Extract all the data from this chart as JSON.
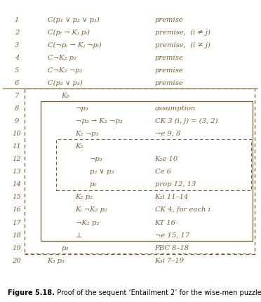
{
  "rows": [
    {
      "num": "1",
      "formula": "C(p₁ ∨ p₂ ∨ p₃)",
      "just": "premise",
      "indent": 0
    },
    {
      "num": "2",
      "formula": "C(pᵢ → Kⱼ pᵢ)",
      "just": "premise,  (i ≠ j)",
      "indent": 0
    },
    {
      "num": "3",
      "formula": "C(¬pᵢ → Kⱼ ¬pᵢ)",
      "just": "premise,  (i ≠ j)",
      "indent": 0
    },
    {
      "num": "4",
      "formula": "C¬K₂ p₂",
      "just": "premise",
      "indent": 0
    },
    {
      "num": "5",
      "formula": "C¬K₂ ¬p₂",
      "just": "premise",
      "indent": 0
    },
    {
      "num": "6",
      "formula": "C(p₂ ∨ p₃)",
      "just": "premise",
      "indent": 0
    },
    {
      "num": "7",
      "formula": "K₃",
      "just": "",
      "indent": 1
    },
    {
      "num": "8",
      "formula": "¬p₃",
      "just": "assumption",
      "indent": 2
    },
    {
      "num": "9",
      "formula": "¬p₃ → K₂ ¬p₃",
      "just": "CK 3 (i, j) = (3, 2)",
      "indent": 2
    },
    {
      "num": "10",
      "formula": "K₂ ¬p₃",
      "just": "→e 9, 8",
      "indent": 2
    },
    {
      "num": "11",
      "formula": "K₂",
      "just": "",
      "indent": 2
    },
    {
      "num": "12",
      "formula": "¬p₃",
      "just": "K₂e 10",
      "indent": 3
    },
    {
      "num": "13",
      "formula": "p₂ ∨ p₃",
      "just": "Ce 6",
      "indent": 3
    },
    {
      "num": "14",
      "formula": "p₂",
      "just": "prop 12, 13",
      "indent": 3
    },
    {
      "num": "15",
      "formula": "K₂ p₂",
      "just": "K₂i 11–14",
      "indent": 2
    },
    {
      "num": "16",
      "formula": "Kᵢ ¬K₂ p₂",
      "just": "CK 4, for each i",
      "indent": 2
    },
    {
      "num": "17",
      "formula": "¬K₂ p₂",
      "just": "KT 16",
      "indent": 2
    },
    {
      "num": "18",
      "formula": "⊥",
      "just": "¬e 15, 17",
      "indent": 2
    },
    {
      "num": "19",
      "formula": "p₃",
      "just": "PBC 8–18",
      "indent": 1
    },
    {
      "num": "20",
      "formula": "K₃ p₃",
      "just": "K₃i 7–19",
      "indent": 0
    }
  ],
  "text_color": "#7a6030",
  "box_color": "#7a6030",
  "bg_color": "#ffffff",
  "fig_width": 3.72,
  "fig_height": 4.31,
  "dpi": 100
}
